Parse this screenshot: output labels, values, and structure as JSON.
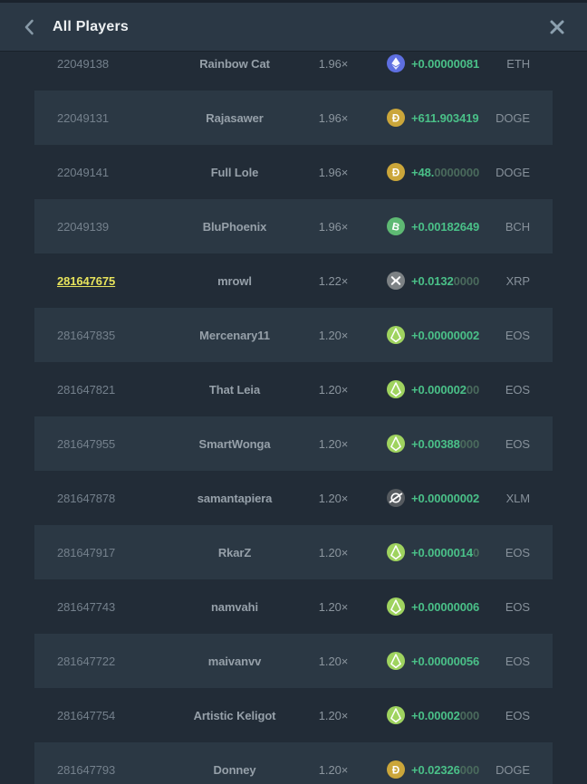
{
  "header": {
    "title": "All Players",
    "back_icon": "chevron-left-icon",
    "close_icon": "close-icon"
  },
  "colors": {
    "background": "#222c37",
    "row_stripe": "#2b3844",
    "header_background": "#2b3845",
    "amount_green": "#4ac088",
    "amount_dim_green": "#4a6a5c",
    "highlight_yellow": "#e7e35c",
    "coins": {
      "ETH": "#5e6fe1",
      "DOGE": "#cba63a",
      "BCH": "#5eb973",
      "XRP": "#7d8285",
      "XLM": "#565b60",
      "EOS": "#9fd35f"
    }
  },
  "rows": [
    {
      "id": "22049138",
      "name": "Rainbow Cat",
      "multiplier": "1.96×",
      "coin": "ETH",
      "icon": "eth-coin-icon",
      "amount": "+0.00000081",
      "amount_dim": "",
      "currency": "ETH",
      "highlighted": false
    },
    {
      "id": "22049131",
      "name": "Rajasawer",
      "multiplier": "1.96×",
      "coin": "DOGE",
      "icon": "doge-coin-icon",
      "amount": "+611.903419",
      "amount_dim": "",
      "currency": "DOGE",
      "highlighted": false
    },
    {
      "id": "22049141",
      "name": "Full Lole",
      "multiplier": "1.96×",
      "coin": "DOGE",
      "icon": "doge-coin-icon",
      "amount": "+48.",
      "amount_dim": "0000000",
      "currency": "DOGE",
      "highlighted": false
    },
    {
      "id": "22049139",
      "name": "BluPhoenix",
      "multiplier": "1.96×",
      "coin": "BCH",
      "icon": "bch-coin-icon",
      "amount": "+0.00182649",
      "amount_dim": "",
      "currency": "BCH",
      "highlighted": false
    },
    {
      "id": "281647675",
      "name": "mrowl",
      "multiplier": "1.22×",
      "coin": "XRP",
      "icon": "xrp-coin-icon",
      "amount": "+0.0132",
      "amount_dim": "0000",
      "currency": "XRP",
      "highlighted": true
    },
    {
      "id": "281647835",
      "name": "Mercenary11",
      "multiplier": "1.20×",
      "coin": "EOS",
      "icon": "eos-coin-icon",
      "amount": "+0.00000002",
      "amount_dim": "",
      "currency": "EOS",
      "highlighted": false
    },
    {
      "id": "281647821",
      "name": "That Leia",
      "multiplier": "1.20×",
      "coin": "EOS",
      "icon": "eos-coin-icon",
      "amount": "+0.000002",
      "amount_dim": "00",
      "currency": "EOS",
      "highlighted": false
    },
    {
      "id": "281647955",
      "name": "SmartWonga",
      "multiplier": "1.20×",
      "coin": "EOS",
      "icon": "eos-coin-icon",
      "amount": "+0.00388",
      "amount_dim": "000",
      "currency": "EOS",
      "highlighted": false
    },
    {
      "id": "281647878",
      "name": "samantapiera",
      "multiplier": "1.20×",
      "coin": "XLM",
      "icon": "xlm-coin-icon",
      "amount": "+0.00000002",
      "amount_dim": "",
      "currency": "XLM",
      "highlighted": false
    },
    {
      "id": "281647917",
      "name": "RkarZ",
      "multiplier": "1.20×",
      "coin": "EOS",
      "icon": "eos-coin-icon",
      "amount": "+0.0000014",
      "amount_dim": "0",
      "currency": "EOS",
      "highlighted": false
    },
    {
      "id": "281647743",
      "name": "namvahi",
      "multiplier": "1.20×",
      "coin": "EOS",
      "icon": "eos-coin-icon",
      "amount": "+0.00000006",
      "amount_dim": "",
      "currency": "EOS",
      "highlighted": false
    },
    {
      "id": "281647722",
      "name": "maivanvv",
      "multiplier": "1.20×",
      "coin": "EOS",
      "icon": "eos-coin-icon",
      "amount": "+0.00000056",
      "amount_dim": "",
      "currency": "EOS",
      "highlighted": false
    },
    {
      "id": "281647754",
      "name": "Artistic Keligot",
      "multiplier": "1.20×",
      "coin": "EOS",
      "icon": "eos-coin-icon",
      "amount": "+0.00002",
      "amount_dim": "000",
      "currency": "EOS",
      "highlighted": false
    },
    {
      "id": "281647793",
      "name": "Donney",
      "multiplier": "1.20×",
      "coin": "DOGE",
      "icon": "doge-coin-icon",
      "amount": "+0.02326",
      "amount_dim": "000",
      "currency": "DOGE",
      "highlighted": false
    }
  ]
}
